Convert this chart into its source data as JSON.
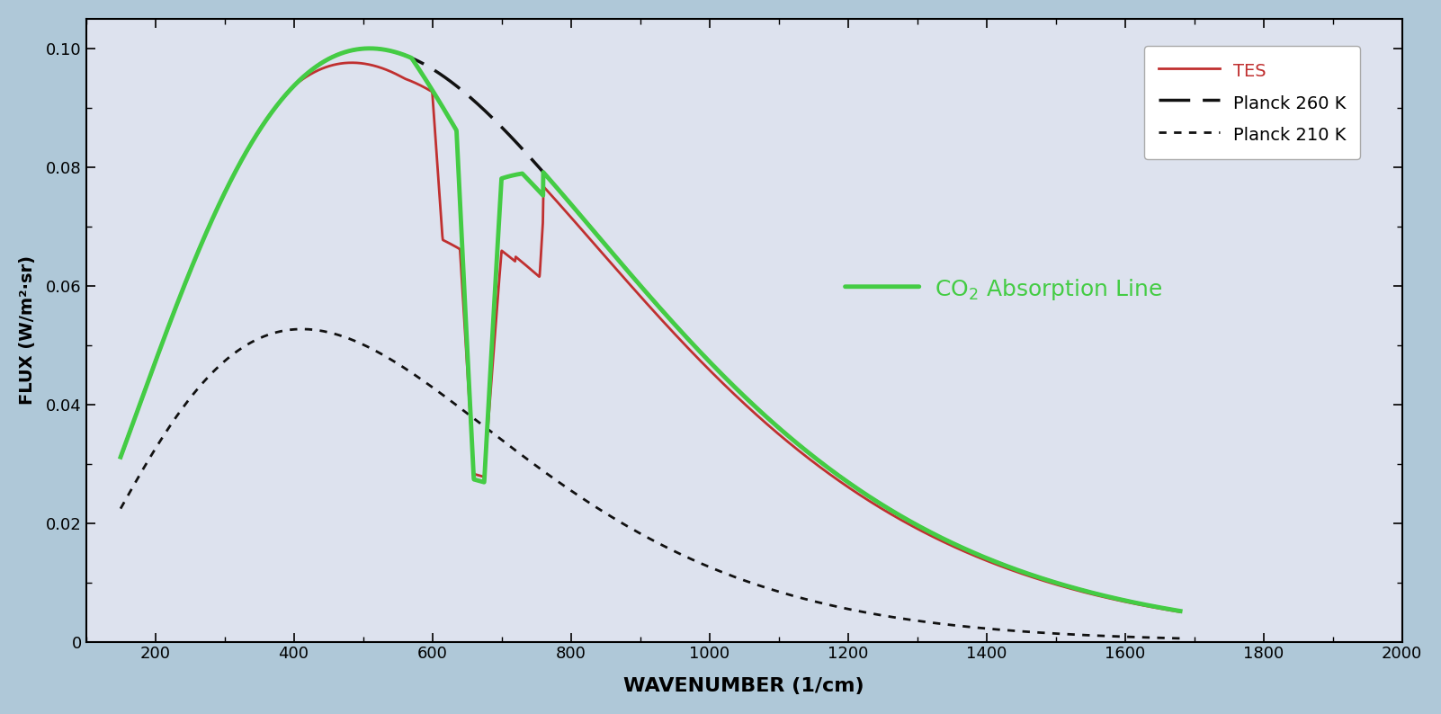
{
  "outer_bg": "#afc8d8",
  "plot_bg": "#dde2ee",
  "xlim": [
    100,
    2000
  ],
  "ylim": [
    0,
    0.105
  ],
  "xticks": [
    200,
    400,
    600,
    800,
    1000,
    1200,
    1400,
    1600,
    1800,
    2000
  ],
  "yticks": [
    0,
    0.02,
    0.04,
    0.06,
    0.08,
    0.1
  ],
  "xlabel": "WAVENUMBER (1/cm)",
  "ylabel": "FLUX (W/m²·sr)",
  "tes_color": "#c03030",
  "planck260_color": "#111111",
  "planck210_color": "#111111",
  "co2_color": "#44cc44",
  "annotation_color": "#44cc44"
}
